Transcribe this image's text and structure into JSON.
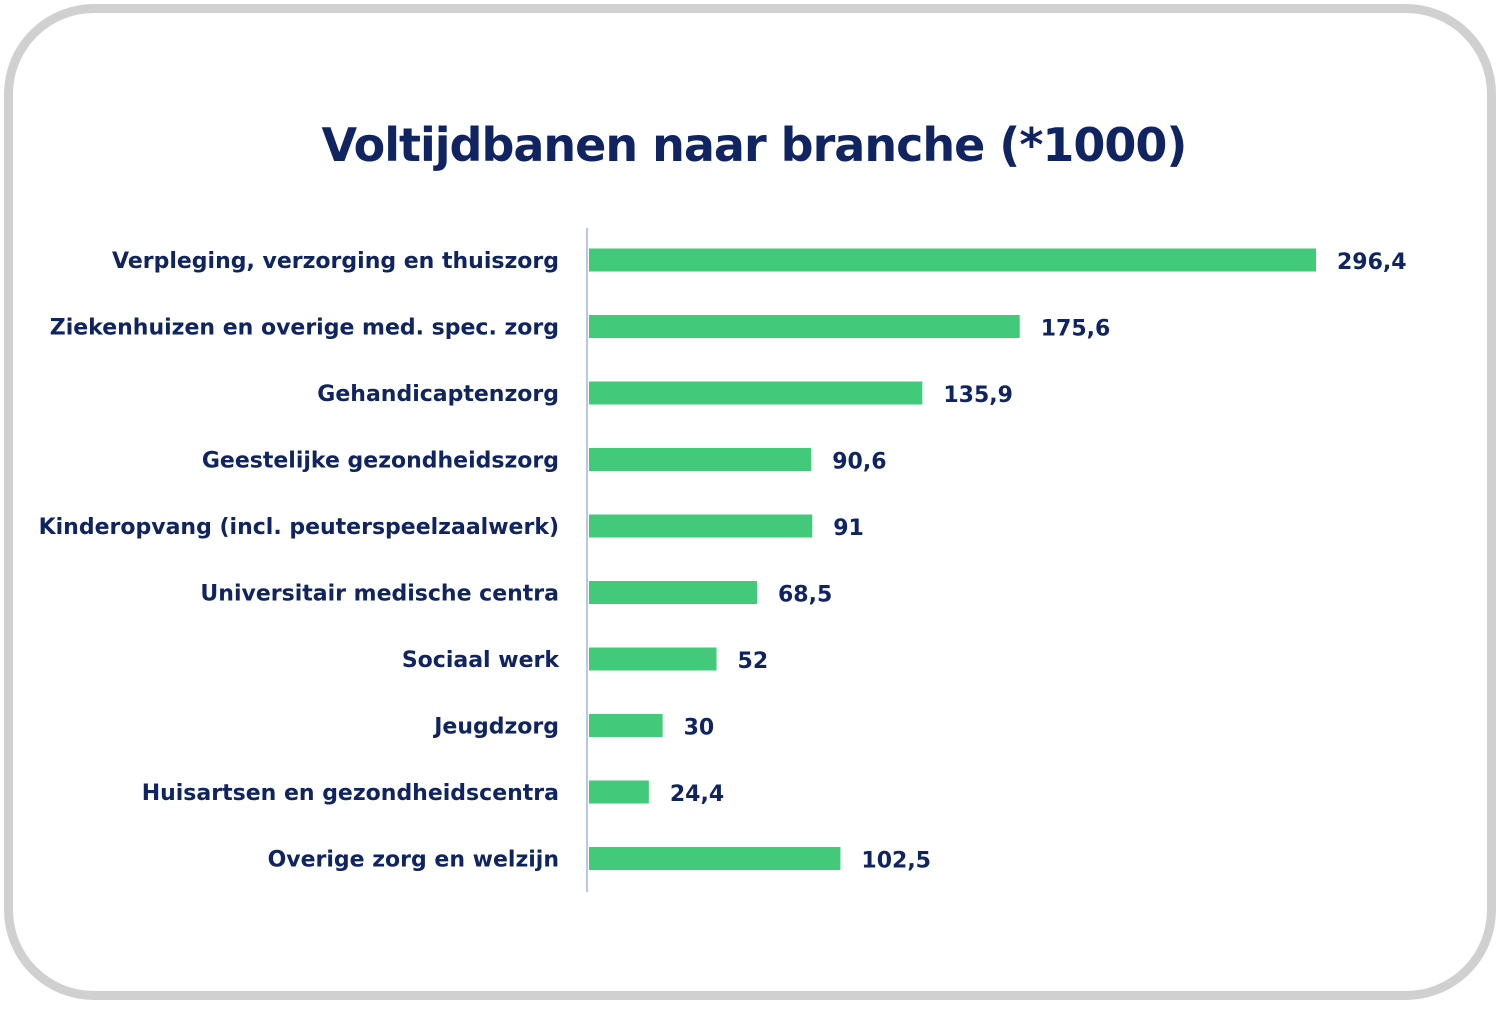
{
  "chart_data": {
    "type": "bar",
    "orientation": "horizontal",
    "title": "Voltijdbanen naar branche (*1000)",
    "categories": [
      "Verpleging, verzorging en thuiszorg",
      "Ziekenhuizen en overige med. spec. zorg",
      "Gehandicaptenzorg",
      "Geestelijke gezondheidszorg",
      "Kinderopvang (incl. peuterspeelzaalwerk)",
      "Universitair medische centra",
      "Sociaal werk",
      "Jeugdzorg",
      "Huisartsen en gezondheidscentra",
      "Overige zorg en welzijn"
    ],
    "values": [
      296.4,
      175.6,
      135.9,
      90.6,
      91,
      68.5,
      52,
      30,
      24.4,
      102.5
    ],
    "value_labels": [
      "296,4",
      "175,6",
      "135,9",
      "90,6",
      "91",
      "68,5",
      "52",
      "30",
      "24,4",
      "102,5"
    ],
    "xlim": [
      0,
      296.4
    ],
    "grid": false,
    "legend": "none",
    "colors": {
      "bar": "#42c97a",
      "text": "#0f2461",
      "axis": "#b7c9ea",
      "frame": "#d0d0d0"
    }
  }
}
